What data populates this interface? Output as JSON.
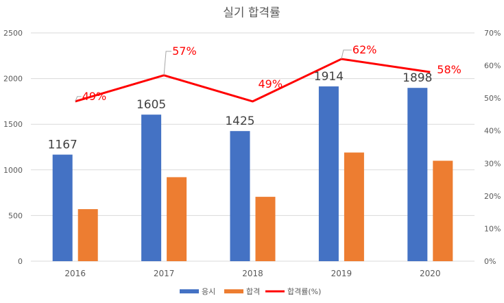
{
  "chart_data": {
    "type": "bar",
    "title": "실기 합격률",
    "categories": [
      "2016",
      "2017",
      "2018",
      "2019",
      "2020"
    ],
    "series": [
      {
        "name": "응시",
        "type": "bar",
        "axis": "left",
        "color": "#4472c4",
        "values": [
          1167,
          1605,
          1425,
          1914,
          1898
        ],
        "labels": [
          "1167",
          "1605",
          "1425",
          "1914",
          "1898"
        ]
      },
      {
        "name": "합격",
        "type": "bar",
        "axis": "left",
        "color": "#ed7d31",
        "values": [
          570,
          920,
          705,
          1190,
          1100
        ]
      },
      {
        "name": "합격률(%)",
        "type": "line",
        "axis": "right",
        "color": "#ff0000",
        "values": [
          49,
          57,
          49,
          62,
          58
        ],
        "labels": [
          "49%",
          "57%",
          "49%",
          "62%",
          "58%"
        ]
      }
    ],
    "ylim": [
      0,
      2500
    ],
    "yticks": [
      "0",
      "500",
      "1000",
      "1500",
      "2000",
      "2500"
    ],
    "y2lim": [
      0,
      70
    ],
    "y2ticks": [
      "0%",
      "10%",
      "20%",
      "30%",
      "40%",
      "50%",
      "60%",
      "70%"
    ],
    "grid": true,
    "legend": "bottom"
  }
}
